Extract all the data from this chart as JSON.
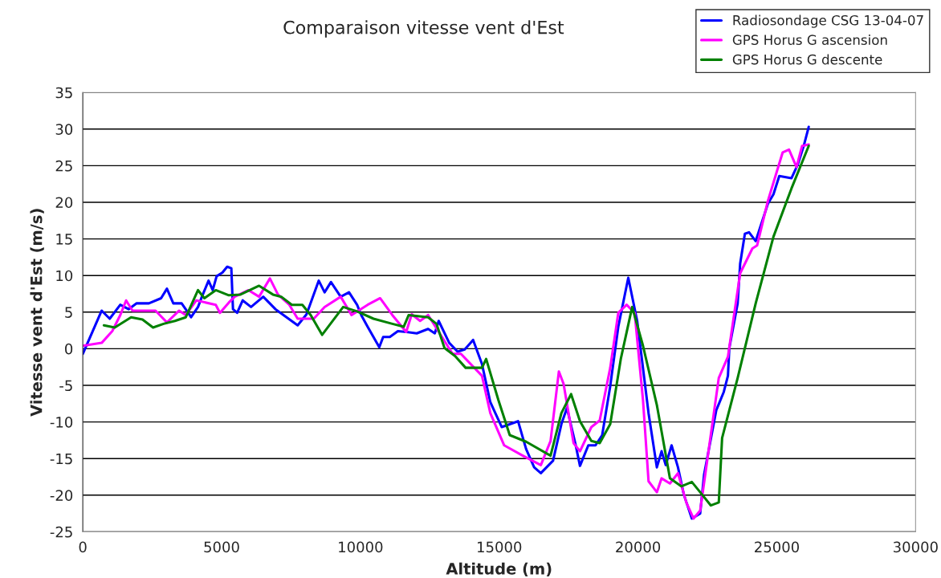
{
  "chart_data": {
    "type": "line",
    "title": "Comparaison vitesse vent d'Est",
    "xlabel": "Altitude (m)",
    "ylabel": "Vitesse vent d'Est (m/s)",
    "xlim": [
      0,
      30000
    ],
    "xticks": [
      0,
      5000,
      10000,
      15000,
      20000,
      25000,
      30000
    ],
    "ylim": [
      -25,
      35
    ],
    "yticks": [
      -25,
      -20,
      -15,
      -10,
      -5,
      0,
      5,
      10,
      15,
      20,
      25,
      30,
      35
    ],
    "grid": "y",
    "legend": "top right",
    "line_style": "solid",
    "marker": "none",
    "series": [
      {
        "name": "Radiosondage CSG 13-04-07",
        "color": "#0000ff",
        "x": [
          0,
          680,
          970,
          1350,
          1650,
          1940,
          2380,
          2820,
          3030,
          3260,
          3560,
          3760,
          3900,
          4150,
          4290,
          4530,
          4680,
          4820,
          5030,
          5200,
          5350,
          5410,
          5560,
          5760,
          6060,
          6500,
          6940,
          7740,
          8060,
          8500,
          8710,
          8940,
          9290,
          9590,
          9880,
          10030,
          10260,
          10680,
          10820,
          11060,
          11350,
          11650,
          12030,
          12440,
          12680,
          12820,
          13200,
          13500,
          13760,
          14060,
          14380,
          14680,
          15090,
          15680,
          15970,
          16260,
          16500,
          16940,
          17240,
          17440,
          17740,
          17910,
          18210,
          18470,
          18710,
          19000,
          19290,
          19650,
          19970,
          20380,
          20680,
          20850,
          21000,
          21210,
          21440,
          21650,
          21940,
          22240,
          22380,
          22820,
          23090,
          23240,
          23290,
          23590,
          23680,
          23850,
          24000,
          24240,
          24680,
          24880,
          25090,
          25530,
          25760,
          25970,
          26150
        ],
        "values": [
          -0.7,
          5.2,
          4.1,
          6,
          5.4,
          6.2,
          6.2,
          6.9,
          8.2,
          6.2,
          6.2,
          5.1,
          4.3,
          5.7,
          7.1,
          9.3,
          8,
          9.9,
          10.4,
          11.2,
          11,
          5.4,
          4.9,
          6.6,
          5.7,
          7.1,
          5.4,
          3.2,
          4.7,
          9.3,
          7.7,
          9.1,
          7.1,
          7.7,
          6,
          4.6,
          3,
          0.2,
          1.6,
          1.6,
          2.4,
          2.3,
          2.1,
          2.7,
          2.1,
          3.8,
          0.8,
          -0.4,
          -0.1,
          1.2,
          -2.1,
          -7.3,
          -10.7,
          -9.9,
          -13.7,
          -16.2,
          -17,
          -15.3,
          -10.3,
          -8.1,
          -12.9,
          -16,
          -13.2,
          -13.2,
          -11.8,
          -5.1,
          3,
          9.7,
          3.8,
          -8.8,
          -16.2,
          -14,
          -15.9,
          -13.2,
          -16.2,
          -19.9,
          -23.2,
          -22.5,
          -17.2,
          -8.4,
          -5.9,
          -3.7,
          0.1,
          6.2,
          11.6,
          15.7,
          15.9,
          14.7,
          19.8,
          21.1,
          23.6,
          23.3,
          25.2,
          27.7,
          30.3
        ]
      },
      {
        "name": "GPS Horus G ascension",
        "color": "#ff00ff",
        "x": [
          0,
          680,
          1060,
          1350,
          1560,
          1790,
          2620,
          3030,
          3470,
          3710,
          4090,
          4790,
          4940,
          5260,
          5470,
          5970,
          6350,
          6740,
          7030,
          7440,
          7740,
          8030,
          8320,
          8710,
          9290,
          9590,
          9680,
          10260,
          10710,
          11150,
          11650,
          11850,
          12150,
          12440,
          13320,
          13620,
          14380,
          14680,
          15180,
          15850,
          16500,
          16850,
          17150,
          17320,
          17680,
          17910,
          18320,
          18620,
          19000,
          19290,
          19590,
          19880,
          20180,
          20380,
          20680,
          20850,
          21150,
          21440,
          21740,
          22000,
          22240,
          22910,
          23240,
          23680,
          24120,
          24290,
          24680,
          25210,
          25440,
          25710,
          25910,
          26150
        ],
        "values": [
          0.4,
          0.8,
          2.4,
          4.6,
          6.6,
          5.2,
          5.2,
          3.6,
          5.2,
          4.6,
          6.6,
          6,
          4.9,
          6.3,
          7.1,
          8,
          7.1,
          9.6,
          7.4,
          6,
          4.1,
          4.1,
          4.1,
          5.7,
          7.1,
          5.2,
          4.6,
          6,
          6.9,
          4.6,
          2.3,
          4.7,
          3.8,
          4.6,
          -0.7,
          -0.7,
          -3.7,
          -8.8,
          -13.2,
          -14.6,
          -15.9,
          -12.6,
          -3.1,
          -4.8,
          -12.9,
          -14,
          -10.7,
          -9.8,
          -2.6,
          4.9,
          6,
          4.9,
          -7,
          -18.1,
          -19.6,
          -17.7,
          -18.4,
          -17,
          -21,
          -23.2,
          -22.1,
          -4,
          -1.1,
          10.3,
          13.7,
          14.1,
          20.2,
          26.8,
          27.2,
          24.8,
          27.7,
          27.9
        ]
      },
      {
        "name": "GPS Horus G descente",
        "color": "#008000",
        "x": [
          760,
          1150,
          1740,
          2150,
          2530,
          2910,
          3320,
          3710,
          4150,
          4380,
          4790,
          5260,
          5680,
          6350,
          6850,
          7150,
          7530,
          7910,
          8210,
          8620,
          9380,
          9880,
          10470,
          11150,
          11560,
          11740,
          12440,
          12740,
          13030,
          13410,
          13790,
          14380,
          14530,
          14970,
          15380,
          15970,
          16850,
          17240,
          17590,
          17910,
          18320,
          18620,
          19000,
          19380,
          19790,
          20180,
          20680,
          21150,
          21560,
          21940,
          22240,
          22620,
          22910,
          23030,
          23590,
          24240,
          24880,
          25530,
          26150
        ],
        "values": [
          3.2,
          2.9,
          4.3,
          4,
          2.9,
          3.4,
          3.8,
          4.3,
          8,
          6.9,
          8,
          7.3,
          7.4,
          8.6,
          7.4,
          7.1,
          6,
          6,
          4.6,
          1.9,
          5.7,
          5.1,
          4.1,
          3.4,
          3,
          4.6,
          4.3,
          3.4,
          0.1,
          -1,
          -2.6,
          -2.6,
          -1.4,
          -7,
          -11.8,
          -12.7,
          -14.6,
          -8.8,
          -6.2,
          -9.9,
          -12.6,
          -12.9,
          -10.3,
          -1.4,
          5.7,
          0.4,
          -7.7,
          -17.7,
          -18.8,
          -18.2,
          -19.6,
          -21.4,
          -21,
          -12.2,
          -4,
          6.2,
          15.3,
          21.9,
          27.7
        ]
      }
    ]
  }
}
